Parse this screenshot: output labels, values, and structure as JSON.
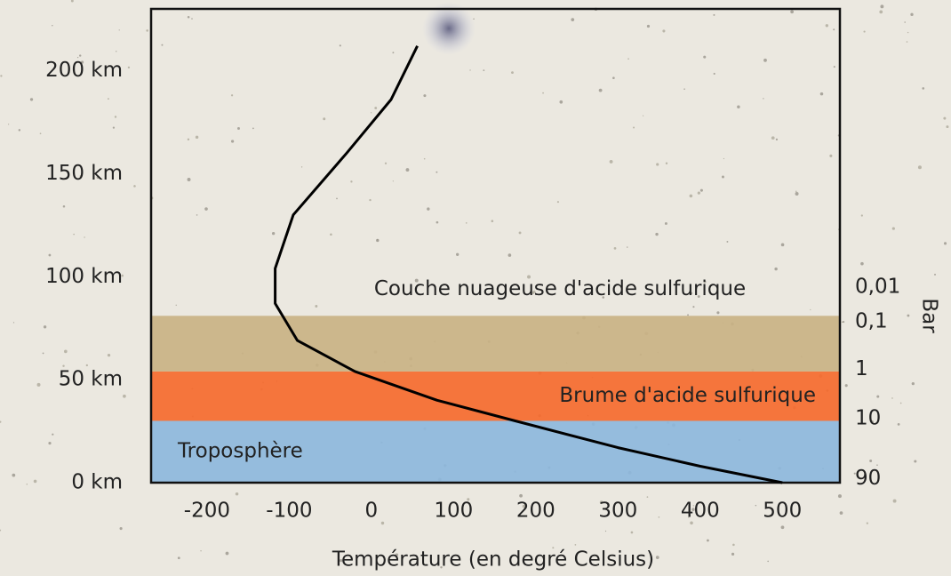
{
  "chart_data": {
    "type": "line",
    "x_label": "Température (en degré Celsius)",
    "xlim": [
      -268,
      570
    ],
    "xticks": [
      -200,
      -100,
      0,
      100,
      200,
      300,
      400,
      500
    ],
    "ylim": [
      0,
      230
    ],
    "yticks": [
      {
        "value": 0,
        "label": "0 km"
      },
      {
        "value": 50,
        "label": "50 km"
      },
      {
        "value": 100,
        "label": "100 km"
      },
      {
        "value": 150,
        "label": "150 km"
      },
      {
        "value": 200,
        "label": "200 km"
      }
    ],
    "color": "#000000",
    "x": [
      500,
      400,
      300,
      175,
      80,
      -20,
      -90,
      -117,
      -117,
      -95,
      -30,
      24,
      56
    ],
    "values": [
      0,
      8,
      17,
      30,
      40,
      54,
      69,
      87,
      104,
      130,
      160,
      186,
      212
    ],
    "regions": [
      {
        "label": "Troposphère",
        "from": 0,
        "to": 30,
        "color": "#8db7dc"
      },
      {
        "label": "Brume d'acide sulfurique",
        "from": 30,
        "to": 54,
        "color": "#f56a2e"
      },
      {
        "label": "Couche nuageuse d'acide sulfurique",
        "from": 54,
        "to": 81,
        "color": "#c9b284"
      }
    ],
    "pressure_axis": {
      "label": "Bar",
      "ticks": [
        {
          "value": 0.01,
          "label": "0,01",
          "altitude": 95
        },
        {
          "value": 0.1,
          "label": "0,1",
          "altitude": 78
        },
        {
          "value": 1,
          "label": "1",
          "altitude": 55
        },
        {
          "value": 10,
          "label": "10",
          "altitude": 31
        },
        {
          "value": 90,
          "label": "90",
          "altitude": 2
        }
      ]
    }
  }
}
